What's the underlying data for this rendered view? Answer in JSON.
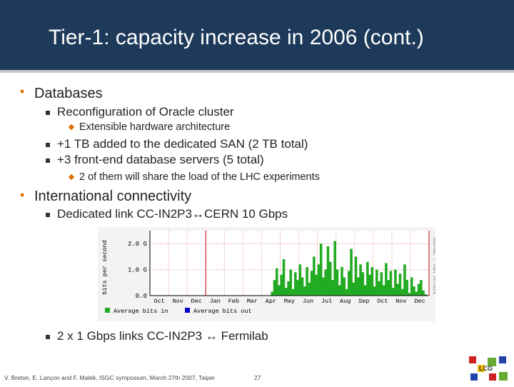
{
  "slide": {
    "title": "Tier-1: capacity increase in 2006 (cont.)",
    "bullets": [
      "Databases",
      "Reconfiguration of Oracle cluster",
      "Extensible hardware architecture",
      "+1 TB added to the dedicated SAN (2 TB total)",
      "+3 front-end database servers (5 total)",
      "2 of them will share the load of the LHC experiments",
      "International connectivity",
      "Dedicated link CC-IN2P3↔CERN 10 Gbps",
      "2 x 1 Gbps links CC-IN2P3 ↔ Fermilab"
    ],
    "footer": "V. Breton, E. Lançon and F. Malek, ISGC symposium, March 27th 2007, Taipei",
    "page": "27",
    "logo_text": "LCG"
  },
  "colors": {
    "header": "#1e3a5a",
    "accent": "#e07000",
    "series_in": "#22aa22",
    "series_out": "#0000cc"
  },
  "chart_data": {
    "type": "area",
    "ylabel": "bits per second",
    "right_label": "RRDTOOL / TOBI OETIKER",
    "y_ticks": [
      "2.0 G",
      "1.0 G",
      "0.0"
    ],
    "ylim": [
      0,
      2.5
    ],
    "x_ticks": [
      "Oct",
      "Nov",
      "Dec",
      "Jan",
      "Feb",
      "Mar",
      "Apr",
      "May",
      "Jun",
      "Jul",
      "Aug",
      "Sep",
      "Oct",
      "Nov",
      "Dec"
    ],
    "legend": [
      "Average bits in",
      "Average bits out"
    ],
    "series": [
      {
        "name": "Average bits in",
        "values": [
          0,
          0,
          0,
          0,
          0,
          0,
          0,
          0,
          0,
          0,
          0,
          0,
          0,
          0,
          0,
          0,
          0,
          0,
          0,
          0,
          0,
          0,
          0,
          0,
          0,
          0,
          0,
          0,
          0,
          0,
          0,
          0,
          0,
          0,
          0,
          0,
          0,
          0,
          0,
          0,
          0,
          0,
          0,
          0,
          0,
          0,
          0,
          0,
          0,
          0,
          0,
          0,
          0.15,
          0.6,
          1.05,
          0.4,
          0.8,
          1.4,
          0.3,
          0.55,
          1.0,
          0.25,
          0.9,
          0.6,
          1.2,
          0.7,
          0.35,
          1.1,
          0.5,
          0.95,
          1.5,
          0.8,
          1.2,
          2.0,
          0.7,
          1.0,
          1.9,
          1.3,
          0.6,
          2.1,
          1.0,
          0.4,
          1.1,
          0.7,
          0.25,
          0.95,
          1.8,
          0.5,
          1.5,
          0.7,
          1.2,
          0.9,
          0.4,
          1.3,
          0.8,
          1.1,
          0.35,
          1.0,
          0.55,
          0.9,
          0.4,
          1.25,
          0.6,
          0.95,
          0.3,
          1.0,
          0.45,
          0.85,
          0.25,
          1.2,
          0.6,
          0.1,
          0.7,
          0.35,
          0.15,
          0.45,
          0.6,
          0.2,
          0.05,
          0
        ]
      },
      {
        "name": "Average bits out",
        "values": []
      }
    ]
  }
}
